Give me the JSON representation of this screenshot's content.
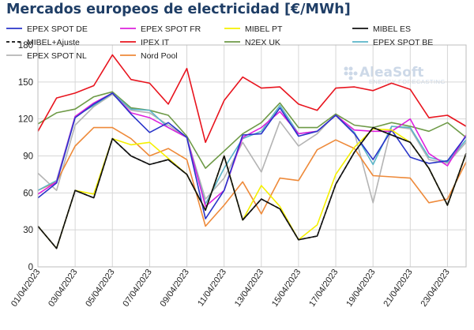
{
  "chart_data": {
    "type": "line",
    "title": "Mercados europeos de electricidad [€/MWh]",
    "xlabel": "",
    "ylabel": "",
    "ylim": [
      0,
      180
    ],
    "yticks": [
      0,
      30,
      60,
      90,
      120,
      150,
      180
    ],
    "grid": true,
    "legend_position": "top",
    "x": [
      "01/04/2023",
      "02/04/2023",
      "03/04/2023",
      "04/04/2023",
      "05/04/2023",
      "06/04/2023",
      "07/04/2023",
      "08/04/2023",
      "09/04/2023",
      "10/04/2023",
      "11/04/2023",
      "12/04/2023",
      "13/04/2023",
      "14/04/2023",
      "15/04/2023",
      "16/04/2023",
      "17/04/2023",
      "18/04/2023",
      "19/04/2023",
      "20/04/2023",
      "21/04/2023",
      "22/04/2023",
      "23/04/2023",
      "24/04/2023"
    ],
    "xtick_labels": [
      "01/04/2023",
      "03/04/2023",
      "05/04/2023",
      "07/04/2023",
      "09/04/2023",
      "11/04/2023",
      "13/04/2023",
      "15/04/2023",
      "17/04/2023",
      "19/04/2023",
      "21/04/2023",
      "23/04/2023"
    ],
    "series": [
      {
        "name": "EPEX SPOT DE",
        "color": "#2a35c9",
        "dashed": false,
        "values": [
          56,
          68,
          121,
          132,
          141,
          124,
          109,
          117,
          105,
          39,
          62,
          107,
          108,
          129,
          106,
          110,
          123,
          108,
          87,
          111,
          89,
          84,
          86,
          106
        ]
      },
      {
        "name": "EPEX SPOT FR",
        "color": "#dd22dd",
        "dashed": false,
        "values": [
          59,
          69,
          122,
          133,
          141,
          125,
          121,
          113,
          105,
          49,
          62,
          105,
          113,
          126,
          108,
          110,
          123,
          111,
          110,
          110,
          120,
          92,
          82,
          107
        ]
      },
      {
        "name": "MIBEL PT",
        "color": "#f5f000",
        "dashed": false,
        "values": [
          33,
          15,
          62,
          59,
          104,
          99,
          101,
          88,
          75,
          46,
          90,
          38,
          66,
          49,
          22,
          34,
          75,
          97,
          112,
          111,
          101,
          80,
          50,
          92
        ]
      },
      {
        "name": "MIBEL ES",
        "color": "#111111",
        "dashed": false,
        "values": [
          33,
          15,
          62,
          56,
          104,
          90,
          83,
          87,
          75,
          46,
          90,
          38,
          55,
          47,
          22,
          25,
          67,
          93,
          113,
          107,
          101,
          80,
          50,
          92
        ]
      },
      {
        "name": "MIBEL+Ajuste",
        "color": "#111111",
        "dashed": true,
        "values": [
          33,
          15,
          62,
          56,
          104,
          90,
          83,
          87,
          75,
          46,
          90,
          38,
          55,
          47,
          22,
          25,
          67,
          93,
          113,
          107,
          101,
          80,
          50,
          92
        ]
      },
      {
        "name": "IPEX IT",
        "color": "#e8141e",
        "dashed": false,
        "values": [
          110,
          137,
          141,
          147,
          172,
          152,
          149,
          132,
          161,
          101,
          135,
          154,
          145,
          146,
          132,
          127,
          145,
          146,
          143,
          149,
          144,
          121,
          123,
          114
        ]
      },
      {
        "name": "N2EX UK",
        "color": "#6e9a47",
        "dashed": false,
        "values": [
          116,
          125,
          128,
          138,
          142,
          129,
          127,
          123,
          106,
          80,
          94,
          108,
          117,
          133,
          113,
          113,
          124,
          115,
          113,
          117,
          114,
          110,
          117,
          105
        ]
      },
      {
        "name": "EPEX SPOT BE",
        "color": "#5ab4c8",
        "dashed": false,
        "values": [
          62,
          70,
          122,
          131,
          141,
          128,
          127,
          113,
          105,
          51,
          80,
          104,
          110,
          131,
          108,
          110,
          123,
          109,
          83,
          114,
          113,
          89,
          85,
          103
        ]
      },
      {
        "name": "EPEX SPOT NL",
        "color": "#b4b4b4",
        "dashed": false,
        "values": [
          76,
          62,
          115,
          130,
          140,
          127,
          125,
          115,
          105,
          55,
          72,
          101,
          77,
          118,
          98,
          108,
          124,
          109,
          52,
          114,
          112,
          87,
          84,
          101
        ]
      },
      {
        "name": "Nord Pool",
        "color": "#ee8a3a",
        "dashed": false,
        "values": [
          62,
          69,
          98,
          113,
          113,
          104,
          90,
          96,
          87,
          33,
          50,
          69,
          43,
          72,
          70,
          95,
          103,
          96,
          74,
          73,
          72,
          52,
          55,
          85
        ]
      }
    ],
    "watermark": {
      "brand": "AleaSoft",
      "tagline": "ENERGY FORECASTING"
    }
  }
}
